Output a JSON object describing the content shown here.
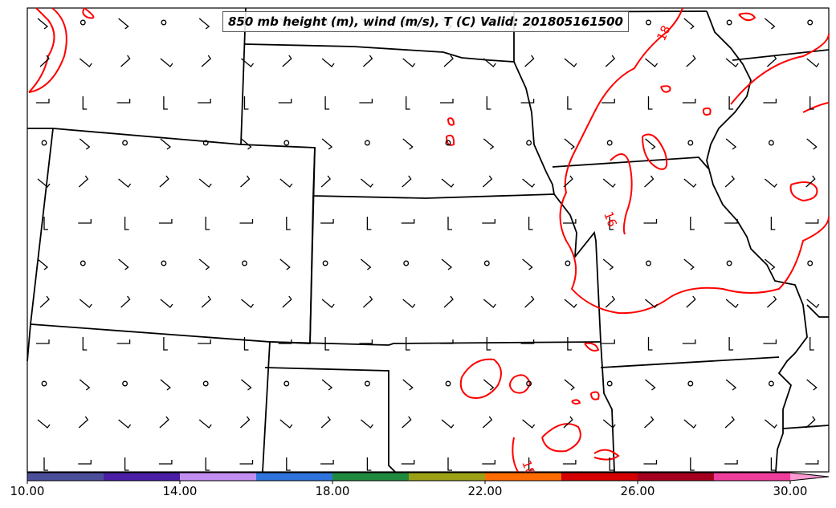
{
  "title": "850 mb height (m), wind (m/s), T (C) Valid: 201805161500",
  "contour_labels": [
    "18",
    "16",
    "18"
  ],
  "colorbar": {
    "tick_labels": [
      "10.00",
      "14.00",
      "18.00",
      "22.00",
      "26.00",
      "30.00"
    ],
    "colors": [
      "#4b4f9a",
      "#4a1fa5",
      "#c28ef0",
      "#2f74dc",
      "#1f8a3d",
      "#9ca015",
      "#ff6b00",
      "#d40000",
      "#a4001e",
      "#ef3d9c",
      "#ff9ad0"
    ]
  },
  "colors": {
    "contour": "#ff0000",
    "boundaries": "#000000",
    "barbs": "#000000"
  }
}
